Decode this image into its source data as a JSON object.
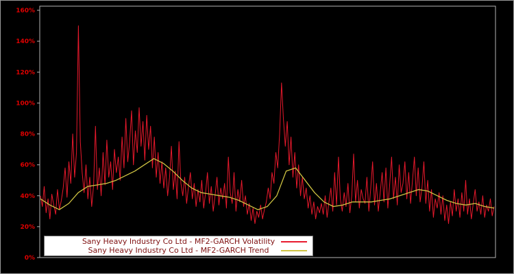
{
  "figure": {
    "background": "#000000",
    "axis_border_color": "#b3b3b3",
    "tick_label_color": "#e00000"
  },
  "legend": {
    "background": "#ffffff",
    "border_color": "#6e6e6e",
    "text_color": "#7f1010",
    "entries": [
      {
        "label": "Sany Heavy Industry Co Ltd - MF2-GARCH Volatility",
        "color": "#e8192c"
      },
      {
        "label": "Sany Heavy Industry Co Ltd - MF2-GARCH Trend",
        "color": "#cfc342"
      }
    ]
  },
  "chart_data": {
    "type": "line",
    "title": "",
    "xlabel": "",
    "ylabel": "",
    "ylim": [
      0,
      160
    ],
    "ytick_labels": [
      "0%",
      "20%",
      "40%",
      "60%",
      "80%",
      "100%",
      "120%",
      "140%",
      "160%"
    ],
    "xtick_labels": [],
    "grid": false,
    "legend_position": "bottom-left",
    "series": [
      {
        "name": "Sany Heavy Industry Co Ltd - MF2-GARCH Volatility",
        "color": "#e8192c",
        "width": 1,
        "values": [
          40,
          33,
          46,
          29,
          38,
          25,
          41,
          34,
          28,
          44,
          31,
          37,
          45,
          58,
          39,
          62,
          48,
          80,
          52,
          68,
          150,
          75,
          55,
          42,
          60,
          38,
          52,
          33,
          47,
          85,
          44,
          58,
          40,
          68,
          47,
          76,
          52,
          62,
          44,
          70,
          55,
          65,
          50,
          78,
          58,
          90,
          62,
          75,
          95,
          60,
          82,
          68,
          97,
          72,
          88,
          63,
          92,
          70,
          85,
          58,
          78,
          52,
          68,
          48,
          62,
          45,
          58,
          40,
          52,
          72,
          44,
          56,
          38,
          75,
          48,
          40,
          52,
          35,
          46,
          55,
          38,
          48,
          33,
          44,
          36,
          50,
          32,
          42,
          55,
          35,
          46,
          30,
          40,
          52,
          34,
          45,
          38,
          48,
          32,
          65,
          42,
          35,
          55,
          30,
          44,
          36,
          50,
          33,
          40,
          28,
          35,
          24,
          32,
          22,
          30,
          26,
          34,
          25,
          31,
          36,
          45,
          38,
          55,
          48,
          68,
          58,
          80,
          113,
          90,
          72,
          88,
          60,
          78,
          52,
          68,
          45,
          60,
          40,
          52,
          38,
          45,
          32,
          40,
          28,
          36,
          25,
          33,
          29,
          35,
          28,
          40,
          26,
          36,
          45,
          30,
          55,
          34,
          65,
          38,
          30,
          42,
          33,
          48,
          29,
          40,
          67,
          36,
          50,
          32,
          44,
          38,
          35,
          52,
          30,
          45,
          62,
          34,
          48,
          30,
          42,
          55,
          36,
          58,
          32,
          48,
          65,
          38,
          52,
          34,
          60,
          42,
          48,
          62,
          38,
          55,
          35,
          50,
          65,
          40,
          58,
          36,
          45,
          62,
          35,
          50,
          30,
          44,
          26,
          38,
          32,
          42,
          28,
          40,
          24,
          34,
          22,
          36,
          27,
          44,
          30,
          38,
          26,
          42,
          30,
          50,
          28,
          38,
          25,
          35,
          44,
          30,
          36,
          28,
          40,
          26,
          34,
          30,
          38,
          27,
          33
        ]
      },
      {
        "name": "Sany Heavy Industry Co Ltd - MF2-GARCH Trend",
        "color": "#cfc342",
        "width": 1.3,
        "values": [
          38,
          34,
          31,
          35,
          42,
          46,
          47,
          48,
          50,
          53,
          56,
          60,
          64,
          61,
          56,
          50,
          45,
          42,
          41,
          40,
          39,
          37,
          34,
          31,
          33,
          40,
          56,
          58,
          50,
          42,
          36,
          33,
          34,
          36,
          36,
          36,
          37,
          38,
          40,
          42,
          44,
          43,
          40,
          37,
          35,
          34,
          35,
          33,
          32
        ]
      }
    ]
  }
}
